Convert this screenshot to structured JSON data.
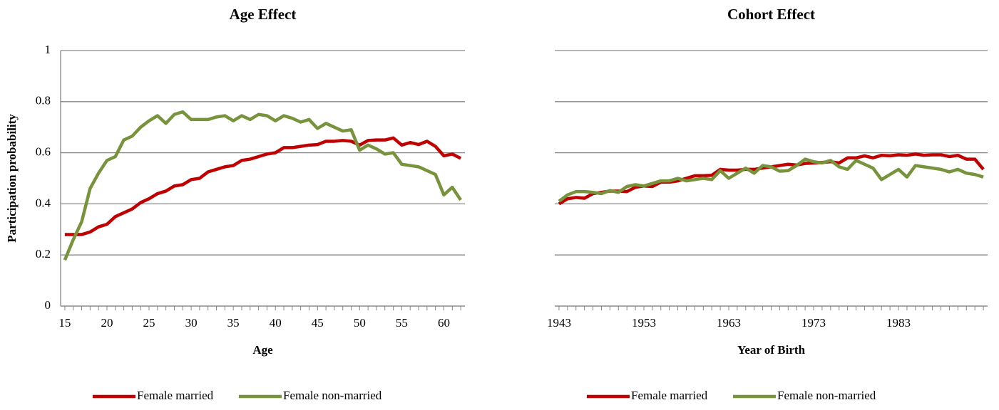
{
  "chart_data": [
    {
      "type": "line",
      "title": "Age Effect",
      "xlabel": "Age",
      "ylabel": "Participation probability",
      "x": [
        15,
        16,
        17,
        18,
        19,
        20,
        21,
        22,
        23,
        24,
        25,
        26,
        27,
        28,
        29,
        30,
        31,
        32,
        33,
        34,
        35,
        36,
        37,
        38,
        39,
        40,
        41,
        42,
        43,
        44,
        45,
        46,
        47,
        48,
        49,
        50,
        51,
        52,
        53,
        54,
        55,
        56,
        57,
        58,
        59,
        60,
        61,
        62
      ],
      "xlim": [
        14.5,
        62.5
      ],
      "xticks": [
        15,
        20,
        25,
        30,
        35,
        40,
        45,
        50,
        55,
        60
      ],
      "ylim": [
        0,
        1
      ],
      "yticks": [
        0,
        0.2,
        0.4,
        0.6,
        0.8,
        1
      ],
      "show_ytick_labels": true,
      "grid": true,
      "series": [
        {
          "name": "Female married",
          "color": "#c00000",
          "values": [
            0.28,
            0.28,
            0.28,
            0.29,
            0.31,
            0.32,
            0.35,
            0.365,
            0.38,
            0.405,
            0.42,
            0.44,
            0.45,
            0.47,
            0.475,
            0.495,
            0.5,
            0.525,
            0.535,
            0.545,
            0.55,
            0.57,
            0.575,
            0.585,
            0.595,
            0.6,
            0.62,
            0.62,
            0.625,
            0.63,
            0.632,
            0.645,
            0.645,
            0.648,
            0.645,
            0.63,
            0.648,
            0.65,
            0.65,
            0.658,
            0.63,
            0.64,
            0.632,
            0.645,
            0.625,
            0.588,
            0.595,
            0.578
          ]
        },
        {
          "name": "Female non-married",
          "color": "#77933c",
          "values": [
            0.18,
            0.26,
            0.33,
            0.46,
            0.52,
            0.57,
            0.585,
            0.65,
            0.665,
            0.7,
            0.725,
            0.745,
            0.715,
            0.75,
            0.76,
            0.73,
            0.73,
            0.73,
            0.74,
            0.745,
            0.725,
            0.745,
            0.73,
            0.75,
            0.745,
            0.725,
            0.745,
            0.735,
            0.72,
            0.73,
            0.695,
            0.715,
            0.7,
            0.685,
            0.69,
            0.61,
            0.63,
            0.615,
            0.595,
            0.6,
            0.555,
            0.55,
            0.545,
            0.53,
            0.515,
            0.435,
            0.465,
            0.415
          ]
        }
      ]
    },
    {
      "type": "line",
      "title": "Cohort Effect",
      "xlabel": "Year of Birth",
      "x": [
        1943,
        1944,
        1945,
        1946,
        1947,
        1948,
        1949,
        1950,
        1951,
        1952,
        1953,
        1954,
        1955,
        1956,
        1957,
        1958,
        1959,
        1960,
        1961,
        1962,
        1963,
        1964,
        1965,
        1966,
        1967,
        1968,
        1969,
        1970,
        1971,
        1972,
        1973,
        1974,
        1975,
        1976,
        1977,
        1978,
        1979,
        1980,
        1981,
        1982,
        1983,
        1984,
        1985,
        1986,
        1987,
        1988,
        1989,
        1990,
        1991,
        1992,
        1993
      ],
      "xlim": [
        1942.5,
        1993.5
      ],
      "xticks": [
        1943,
        1953,
        1963,
        1973,
        1983
      ],
      "ylim": [
        0,
        1
      ],
      "yticks": [
        0,
        0.2,
        0.4,
        0.6,
        0.8,
        1
      ],
      "show_ytick_labels": false,
      "grid": true,
      "series": [
        {
          "name": "Female married",
          "color": "#c00000",
          "values": [
            0.4,
            0.42,
            0.425,
            0.422,
            0.44,
            0.445,
            0.45,
            0.45,
            0.448,
            0.465,
            0.47,
            0.468,
            0.485,
            0.485,
            0.49,
            0.5,
            0.51,
            0.51,
            0.512,
            0.535,
            0.532,
            0.532,
            0.535,
            0.535,
            0.54,
            0.545,
            0.55,
            0.555,
            0.552,
            0.558,
            0.56,
            0.562,
            0.565,
            0.56,
            0.58,
            0.58,
            0.588,
            0.58,
            0.59,
            0.588,
            0.592,
            0.59,
            0.595,
            0.59,
            0.592,
            0.592,
            0.585,
            0.59,
            0.575,
            0.575,
            0.535
          ]
        },
        {
          "name": "Female non-married",
          "color": "#77933c",
          "values": [
            0.41,
            0.435,
            0.448,
            0.448,
            0.445,
            0.44,
            0.452,
            0.445,
            0.468,
            0.475,
            0.47,
            0.48,
            0.49,
            0.49,
            0.5,
            0.49,
            0.495,
            0.5,
            0.495,
            0.53,
            0.5,
            0.52,
            0.54,
            0.52,
            0.55,
            0.545,
            0.528,
            0.53,
            0.55,
            0.575,
            0.565,
            0.56,
            0.57,
            0.545,
            0.535,
            0.57,
            0.555,
            0.54,
            0.495,
            0.515,
            0.535,
            0.505,
            0.55,
            0.545,
            0.54,
            0.535,
            0.525,
            0.535,
            0.52,
            0.515,
            0.505
          ]
        }
      ]
    }
  ]
}
